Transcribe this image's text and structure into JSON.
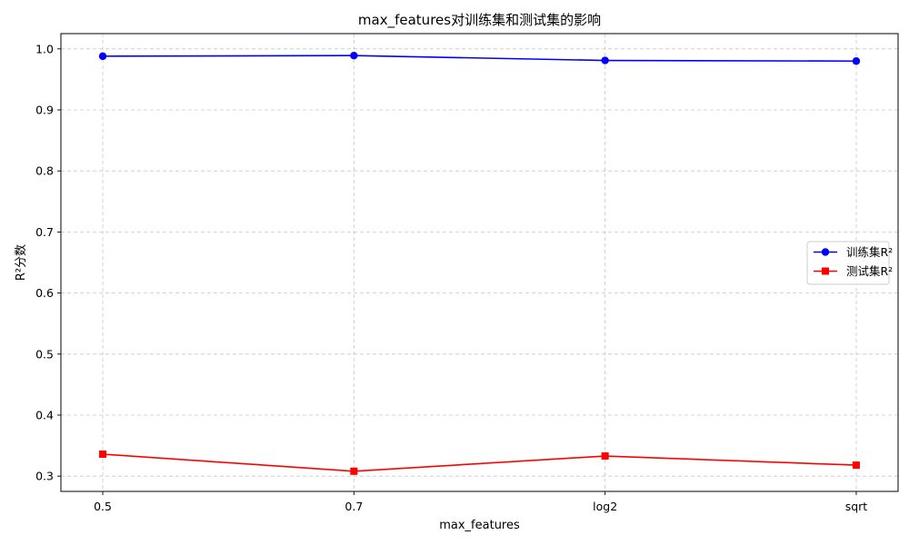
{
  "chart_data": {
    "type": "line",
    "title": "max_features对训练集和测试集的影响",
    "xlabel": "max_features",
    "ylabel": "R²分数",
    "categories": [
      "0.5",
      "0.7",
      "log2",
      "sqrt"
    ],
    "ylim": [
      0.275,
      1.025
    ],
    "yticks": [
      0.3,
      0.4,
      0.5,
      0.6,
      0.7,
      0.8,
      0.9,
      1.0
    ],
    "grid": true,
    "legend_position": "center-right",
    "series": [
      {
        "name": "训练集R²",
        "values": [
          0.988,
          0.989,
          0.981,
          0.98
        ],
        "color": "#0000ff",
        "marker": "circle"
      },
      {
        "name": "测试集R²",
        "values": [
          0.336,
          0.308,
          0.333,
          0.318
        ],
        "color": "#ff0000",
        "marker": "square"
      }
    ]
  }
}
